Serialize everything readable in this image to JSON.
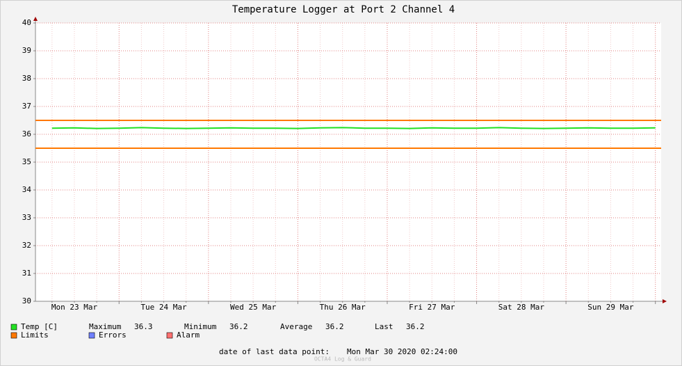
{
  "chart_data": {
    "type": "line",
    "title": "Temperature Logger at Port 2 Channel 4",
    "categories": [
      null,
      "Mon 23 Mar",
      null,
      null,
      null,
      "Tue 24 Mar",
      null,
      null,
      null,
      "Wed 25 Mar",
      null,
      null,
      null,
      "Thu 26 Mar",
      null,
      null,
      null,
      "Fri 27 Mar",
      null,
      null,
      null,
      "Sat 28 Mar",
      null,
      null,
      null,
      "Sun 29 Mar",
      null,
      null
    ],
    "series": [
      {
        "name": "Temp [C]",
        "color": "#22e022",
        "values": [
          36.22,
          36.23,
          36.21,
          36.22,
          36.24,
          36.22,
          36.21,
          36.22,
          36.23,
          36.22,
          36.22,
          36.21,
          36.23,
          36.24,
          36.22,
          36.22,
          36.21,
          36.23,
          36.22,
          36.22,
          36.24,
          36.22,
          36.21,
          36.22,
          36.23,
          36.22,
          36.22,
          36.23
        ]
      }
    ],
    "limits": {
      "name": "Limits",
      "color": "#ff7800",
      "values": [
        36.5,
        35.5
      ]
    },
    "legend_extra": [
      {
        "name": "Errors",
        "color": "#7080ff"
      },
      {
        "name": "Alarm",
        "color": "#ff7070"
      }
    ],
    "stats": [
      {
        "label": "Maximum",
        "value": 36.3
      },
      {
        "label": "Minimum",
        "value": 36.2
      },
      {
        "label": "Average",
        "value": 36.2
      },
      {
        "label": "Last",
        "value": 36.2
      }
    ],
    "footer": {
      "label": "date of last data point:",
      "value": "Mon Mar 30 2020 02:24:00"
    },
    "watermark": "OCTA4 Log & Guard",
    "ylim": [
      30,
      40
    ],
    "yticks": [
      30,
      31,
      32,
      33,
      34,
      35,
      36,
      37,
      38,
      39,
      40
    ],
    "grid": true
  }
}
